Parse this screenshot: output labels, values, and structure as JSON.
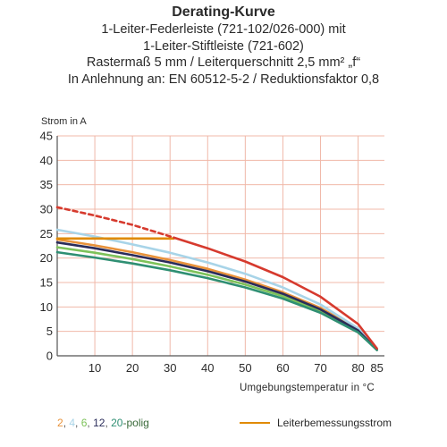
{
  "header": {
    "title": "Derating-Kurve",
    "lines": [
      "1-Leiter-Federleiste (721-102/026-000) mit",
      "1-Leiter-Stiftleiste (721-602)",
      "Rastermaß 5 mm / Leiterquerschnitt 2,5 mm² „f“",
      "In Anlehnung an: EN 60512-5-2 / Reduktionsfaktor 0,8"
    ]
  },
  "chart_data": {
    "type": "line",
    "ylabel": "Strom in A",
    "xlabel": "Umgebungstemperatur in °C",
    "xlim": [
      0,
      87
    ],
    "ylim": [
      0,
      45
    ],
    "x_ticks": [
      10,
      20,
      30,
      40,
      50,
      60,
      70,
      80,
      85
    ],
    "y_ticks": [
      0,
      5,
      10,
      15,
      20,
      25,
      30,
      35,
      40,
      45
    ],
    "grid": true,
    "grid_color": "#f0b8a8",
    "legend_placement": "bottom",
    "series": [
      {
        "name": "2",
        "color": "#e8923a",
        "x": [
          0,
          10,
          20,
          30,
          40,
          50,
          60,
          70,
          80,
          85
        ],
        "y": [
          23.8,
          22.6,
          21.2,
          19.6,
          17.8,
          15.6,
          13,
          9.8,
          5.3,
          1.2
        ]
      },
      {
        "name": "4",
        "color": "#a8d4e8",
        "x": [
          0,
          10,
          20,
          30,
          40,
          50,
          60,
          70,
          80,
          85
        ],
        "y": [
          25.8,
          24.4,
          22.8,
          21.1,
          19.1,
          16.8,
          14,
          10.5,
          5.6,
          1.2
        ]
      },
      {
        "name": "6",
        "color": "#7dc25a",
        "x": [
          0,
          10,
          20,
          30,
          40,
          50,
          60,
          70,
          80,
          85
        ],
        "y": [
          22.2,
          21.1,
          19.8,
          18.3,
          16.6,
          14.6,
          12.2,
          9.2,
          5,
          1.2
        ]
      },
      {
        "name": "12",
        "color": "#2a2c5a",
        "x": [
          0,
          10,
          20,
          30,
          40,
          50,
          60,
          70,
          80,
          85
        ],
        "y": [
          23.2,
          22,
          20.6,
          19.1,
          17.3,
          15.2,
          12.7,
          9.5,
          5.2,
          1.2
        ]
      },
      {
        "name": "20",
        "color": "#2f8f73",
        "x": [
          0,
          10,
          20,
          30,
          40,
          50,
          60,
          70,
          80,
          85
        ],
        "y": [
          21.2,
          20.1,
          18.9,
          17.5,
          15.9,
          14,
          11.7,
          8.8,
          4.8,
          1.2
        ]
      },
      {
        "name": "Leiterbemessungsstrom",
        "color": "#e08a00",
        "x": [
          0,
          31
        ],
        "y": [
          24,
          24
        ]
      },
      {
        "name": "",
        "color": "#d63a2e",
        "dashed": true,
        "x": [
          0,
          10,
          20,
          31
        ],
        "y": [
          30.4,
          28.7,
          26.8,
          24.2
        ]
      },
      {
        "name": "",
        "color": "#d63a2e",
        "x": [
          31,
          40,
          50,
          60,
          70,
          80,
          85
        ],
        "y": [
          24.2,
          22,
          19.3,
          16.1,
          12.1,
          6.5,
          1.5
        ]
      }
    ]
  },
  "legend": {
    "left_items": [
      {
        "label": "2",
        "color": "#e8923a"
      },
      {
        "label": ", ",
        "color": "#555555"
      },
      {
        "label": "4",
        "color": "#a8d4e8"
      },
      {
        "label": ", ",
        "color": "#555555"
      },
      {
        "label": "6",
        "color": "#7dc25a"
      },
      {
        "label": ", ",
        "color": "#555555"
      },
      {
        "label": "12",
        "color": "#2a2c5a"
      },
      {
        "label": ", ",
        "color": "#555555"
      },
      {
        "label": "20",
        "color": "#2f8f73"
      },
      {
        "label": "-polig",
        "color": "#3a6a3a"
      }
    ],
    "right_label": "Leiterbemessungsstrom"
  }
}
